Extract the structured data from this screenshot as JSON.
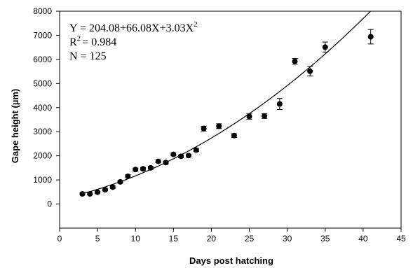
{
  "chart_data": {
    "type": "scatter",
    "xlabel": "Days post hatching",
    "ylabel": "Gape height (µm)",
    "xlim": [
      0,
      45
    ],
    "ylim": [
      -1000,
      8000
    ],
    "xticks": [
      0,
      5,
      10,
      15,
      20,
      25,
      30,
      35,
      40,
      45
    ],
    "yticks": [
      0,
      1000,
      2000,
      3000,
      4000,
      5000,
      6000,
      7000,
      8000
    ],
    "grid": false,
    "annotations": {
      "equation_main": "Y = 204.08+66.08X+3.03X",
      "equation_sup": "2",
      "r2_label": "R",
      "r2_sup": "2",
      "r2_value": "= 0.984",
      "n_text": "N = 125"
    },
    "fit": {
      "type": "quadratic",
      "coefficients": [
        204.08,
        66.08,
        3.03
      ],
      "x_range": [
        3,
        41
      ]
    },
    "points": [
      {
        "x": 3,
        "y": 420,
        "err": 50
      },
      {
        "x": 4,
        "y": 420,
        "err": 40
      },
      {
        "x": 5,
        "y": 490,
        "err": 40
      },
      {
        "x": 6,
        "y": 590,
        "err": 40
      },
      {
        "x": 7,
        "y": 700,
        "err": 50
      },
      {
        "x": 8,
        "y": 920,
        "err": 50
      },
      {
        "x": 9,
        "y": 1150,
        "err": 60
      },
      {
        "x": 10,
        "y": 1430,
        "err": 60
      },
      {
        "x": 11,
        "y": 1460,
        "err": 60
      },
      {
        "x": 12,
        "y": 1500,
        "err": 60
      },
      {
        "x": 13,
        "y": 1770,
        "err": 60
      },
      {
        "x": 14,
        "y": 1720,
        "err": 60
      },
      {
        "x": 15,
        "y": 2060,
        "err": 60
      },
      {
        "x": 16,
        "y": 1980,
        "err": 60
      },
      {
        "x": 17,
        "y": 2010,
        "err": 60
      },
      {
        "x": 18,
        "y": 2240,
        "err": 60
      },
      {
        "x": 19,
        "y": 3130,
        "err": 100
      },
      {
        "x": 21,
        "y": 3230,
        "err": 100
      },
      {
        "x": 23,
        "y": 2840,
        "err": 80
      },
      {
        "x": 25,
        "y": 3630,
        "err": 110
      },
      {
        "x": 27,
        "y": 3650,
        "err": 100
      },
      {
        "x": 29,
        "y": 4150,
        "err": 230
      },
      {
        "x": 31,
        "y": 5920,
        "err": 120
      },
      {
        "x": 33,
        "y": 5510,
        "err": 200
      },
      {
        "x": 35,
        "y": 6510,
        "err": 210
      },
      {
        "x": 41,
        "y": 6940,
        "err": 300
      }
    ]
  }
}
